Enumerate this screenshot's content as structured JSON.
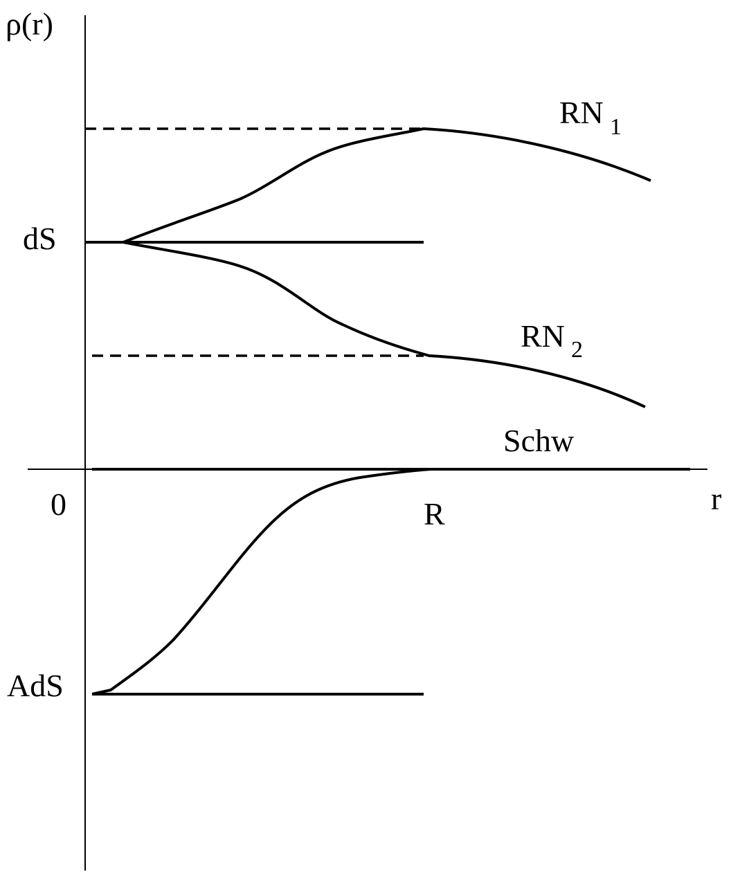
{
  "labels": {
    "y_axis": "ρ(r)",
    "x_axis": "r",
    "origin": "0",
    "r_mark": "R",
    "ds": "dS",
    "ads": "AdS",
    "schw": "Schw",
    "rn1_main": "RN",
    "rn1_sub": "1",
    "rn2_main": "RN",
    "rn2_sub": "2"
  },
  "colors": {
    "ink": "#000000",
    "background": "#ffffff"
  }
}
